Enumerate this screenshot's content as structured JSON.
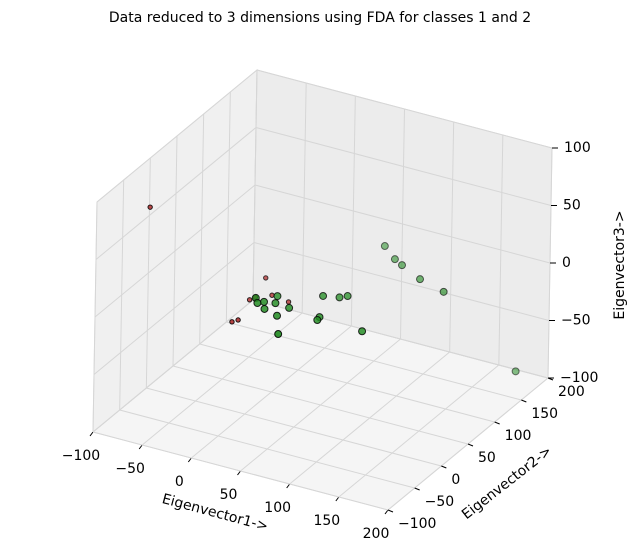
{
  "chart_data": {
    "type": "scatter3d",
    "title": "Data reduced to 3 dimensions using FDA for classes 1 and 2",
    "xlabel": "Eigenvector1->",
    "ylabel": "Eigenvector2->",
    "zlabel": "Eigenvector3->",
    "xlim": [
      -100,
      200
    ],
    "ylim": [
      -100,
      200
    ],
    "zlim": [
      -100,
      100
    ],
    "xticks": [
      {
        "value": -100,
        "label": "−100"
      },
      {
        "value": -50,
        "label": "−50"
      },
      0,
      50,
      100,
      150,
      200
    ],
    "yticks": [
      {
        "value": -100,
        "label": "−100"
      },
      {
        "value": -50,
        "label": "−50"
      },
      0,
      50,
      100,
      150,
      200
    ],
    "zticks": [
      {
        "value": -100,
        "label": "−100"
      },
      {
        "value": -50,
        "label": "−50"
      },
      0,
      50,
      100
    ],
    "grid": true,
    "series": [
      {
        "color": "#b03030",
        "x": [
          -86,
          -5,
          3,
          10,
          13,
          5,
          35,
          16
        ],
        "y": [
          -25,
          45,
          0,
          -46,
          -40,
          7,
          14,
          18
        ],
        "z": [
          70,
          0,
          0,
          0,
          0,
          0,
          0,
          0
        ]
      },
      {
        "color": "#1f8a1f",
        "x": [
          57,
          77,
          88,
          115,
          145,
          190,
          56,
          75,
          70,
          73,
          74,
          119,
          41,
          57,
          39,
          21,
          26,
          23,
          16,
          6,
          12
        ],
        "y": [
          154,
          136,
          129,
          113,
          102,
          157,
          40,
          51,
          45,
          2,
          -4,
          -3,
          4,
          -46,
          -15,
          19,
          6,
          -9,
          3,
          6,
          -2
        ],
        "z": [
          0,
          0,
          0,
          0,
          0,
          -80,
          0,
          0,
          0,
          0,
          0,
          0,
          0,
          0,
          0,
          0,
          0,
          0,
          0,
          0,
          0
        ]
      }
    ]
  }
}
